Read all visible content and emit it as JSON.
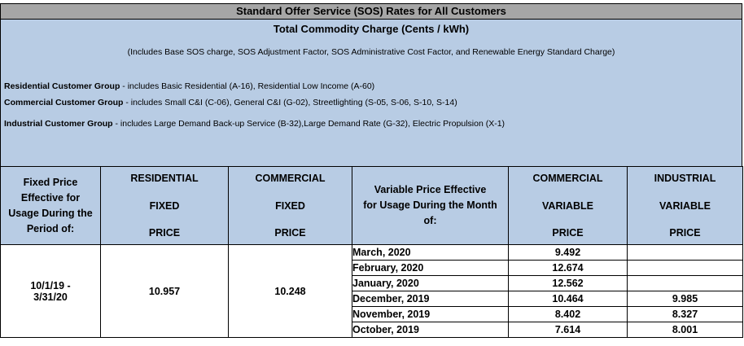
{
  "title": "Standard Offer Service (SOS) Rates for All Customers",
  "subtitle": "Total Commodity Charge (Cents / kWh)",
  "includes_note": "(Includes Base SOS charge, SOS Adjustment Factor, SOS Administrative Cost Factor, and Renewable Energy Standard Charge)",
  "groups": [
    {
      "name": "Residential Customer Group",
      "desc": " - includes Basic Residential (A-16), Residential Low Income (A-60)"
    },
    {
      "name": "Commercial Customer Group",
      "desc": " - includes Small C&I (C-06), General C&I (G-02), Streetlighting (S-05, S-06, S-10, S-14)"
    },
    {
      "name": "Industrial Customer Group",
      "desc": " - includes Large Demand Back-up Service (B-32),Large Demand Rate (G-32), Electric Propulsion (X-1)"
    }
  ],
  "headers": {
    "fixed_period": [
      "Fixed Price",
      "Effective for",
      "Usage During the",
      "Period of:"
    ],
    "res_fixed": [
      "RESIDENTIAL",
      "FIXED",
      "PRICE"
    ],
    "com_fixed": [
      "COMMERCIAL",
      "FIXED",
      "PRICE"
    ],
    "variable_month": [
      "Variable Price Effective",
      "for Usage During the Month",
      "of:"
    ],
    "com_variable": [
      "COMMERCIAL",
      "VARIABLE",
      "PRICE"
    ],
    "ind_variable": [
      "INDUSTRIAL",
      "VARIABLE",
      "PRICE"
    ]
  },
  "fixed": {
    "period_line1": "10/1/19 -",
    "period_line2": "3/31/20",
    "residential": "10.957",
    "commercial": "10.248"
  },
  "variable_rows": [
    {
      "month": "March, 2020",
      "commercial": "9.492",
      "industrial": ""
    },
    {
      "month": "February, 2020",
      "commercial": "12.674",
      "industrial": ""
    },
    {
      "month": "January, 2020",
      "commercial": "12.562",
      "industrial": ""
    },
    {
      "month": "December, 2019",
      "commercial": "10.464",
      "industrial": "9.985"
    },
    {
      "month": "November, 2019",
      "commercial": "8.402",
      "industrial": "8.327"
    },
    {
      "month": "October, 2019",
      "commercial": "7.614",
      "industrial": "8.001"
    }
  ]
}
